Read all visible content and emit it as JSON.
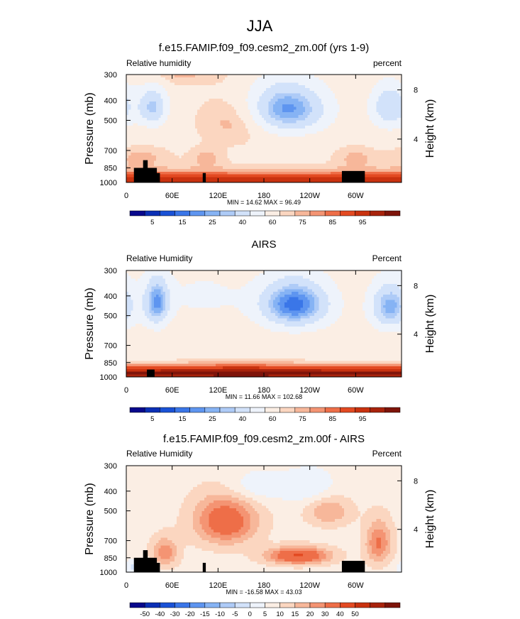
{
  "figure": {
    "title": "JJA"
  },
  "colormaps": {
    "rh": [
      "#08088c",
      "#0b2fb5",
      "#1a52d6",
      "#3a76e8",
      "#5e95f0",
      "#86b3f4",
      "#aecbf7",
      "#d2e2fa",
      "#eef3fb",
      "#fbeee4",
      "#fbd6c0",
      "#f7b79a",
      "#f49473",
      "#ee6e48",
      "#e34a22",
      "#c9320f",
      "#a8230c",
      "#7e140a"
    ],
    "diff": [
      "#08088c",
      "#0b2fb5",
      "#1a52d6",
      "#3a76e8",
      "#5e95f0",
      "#86b3f4",
      "#aecbf7",
      "#d2e2fa",
      "#eef3fb",
      "#fbeee4",
      "#fbd6c0",
      "#f7b79a",
      "#f49473",
      "#ee6e48",
      "#e34a22",
      "#c9320f",
      "#a8230c",
      "#7e140a"
    ]
  },
  "chart_data": [
    {
      "type": "heatmap",
      "id": "model",
      "title": "f.e15.FAMIP.f09_f09.cesm2_zm.00f (yrs 1-9)",
      "left_label": "Relative humidity",
      "right_label": "percent",
      "xlabel": "",
      "ylabel": "Pressure (mb)",
      "y2label": "Height (km)",
      "x_ticks": [
        "0",
        "60E",
        "120E",
        "180",
        "120W",
        "60W"
      ],
      "x_tick_values": [
        0,
        60,
        120,
        180,
        240,
        300
      ],
      "x_range": [
        0,
        360
      ],
      "y_ticks": [
        "300",
        "400",
        "500",
        "700",
        "850",
        "1000"
      ],
      "y_tick_values": [
        300,
        400,
        500,
        700,
        850,
        1000
      ],
      "y_range_mb": [
        1000,
        300
      ],
      "y2_ticks": [
        "4",
        "8"
      ],
      "y2_tick_values_km": [
        4,
        8
      ],
      "minmax_text": "MIN = 14.62  MAX = 96.49",
      "min": 14.62,
      "max": 96.49,
      "colorbar_labels": [
        "5",
        "15",
        "25",
        "40",
        "60",
        "75",
        "85",
        "95"
      ],
      "colorbar_label_slots": [
        1,
        3,
        5,
        7,
        9,
        11,
        13,
        15
      ],
      "cmap": "rh",
      "field": "model",
      "topography": [
        [
          10,
          40,
          850
        ],
        [
          22,
          28,
          780
        ],
        [
          38,
          44,
          900
        ],
        [
          100,
          104,
          900
        ],
        [
          282,
          312,
          880
        ]
      ]
    },
    {
      "type": "heatmap",
      "id": "airs",
      "title": "AIRS",
      "left_label": "Relative Humidity",
      "right_label": "Percent",
      "xlabel": "",
      "ylabel": "Pressure (mb)",
      "y2label": "Height (km)",
      "x_ticks": [
        "0",
        "60E",
        "120E",
        "180",
        "120W",
        "60W"
      ],
      "x_tick_values": [
        0,
        60,
        120,
        180,
        240,
        300
      ],
      "x_range": [
        0,
        360
      ],
      "y_ticks": [
        "300",
        "400",
        "500",
        "700",
        "850",
        "1000"
      ],
      "y_tick_values": [
        300,
        400,
        500,
        700,
        850,
        1000
      ],
      "y_range_mb": [
        1000,
        300
      ],
      "y2_ticks": [
        "4",
        "8"
      ],
      "y2_tick_values_km": [
        4,
        8
      ],
      "minmax_text": "MIN = 11.66  MAX = 102.68",
      "min": 11.66,
      "max": 102.68,
      "colorbar_labels": [
        "5",
        "15",
        "25",
        "40",
        "60",
        "75",
        "85",
        "95"
      ],
      "colorbar_label_slots": [
        1,
        3,
        5,
        7,
        9,
        11,
        13,
        15
      ],
      "cmap": "rh",
      "field": "airs",
      "topography": [
        [
          27,
          37,
          920
        ]
      ]
    },
    {
      "type": "heatmap",
      "id": "diff",
      "title": "f.e15.FAMIP.f09_f09.cesm2_zm.00f - AIRS",
      "left_label": "Relative Humidity",
      "right_label": "Percent",
      "xlabel": "",
      "ylabel": "Pressure (mb)",
      "y2label": "Height (km)",
      "x_ticks": [
        "0",
        "60E",
        "120E",
        "180",
        "120W",
        "60W"
      ],
      "x_tick_values": [
        0,
        60,
        120,
        180,
        240,
        300
      ],
      "x_range": [
        0,
        360
      ],
      "y_ticks": [
        "300",
        "400",
        "500",
        "700",
        "850",
        "1000"
      ],
      "y_tick_values": [
        300,
        400,
        500,
        700,
        850,
        1000
      ],
      "y_range_mb": [
        1000,
        300
      ],
      "y2_ticks": [
        "4",
        "8"
      ],
      "y2_tick_values_km": [
        4,
        8
      ],
      "minmax_text": "MIN = -16.58  MAX = 43.03",
      "min": -16.58,
      "max": 43.03,
      "colorbar_labels": [
        "-50",
        "-40",
        "-30",
        "-20",
        "-15",
        "-10",
        "-5",
        "0",
        "5",
        "10",
        "15",
        "20",
        "30",
        "40",
        "50"
      ],
      "colorbar_label_slots": [
        1,
        2,
        3,
        4,
        5,
        6,
        7,
        8,
        9,
        10,
        11,
        12,
        13,
        14,
        15
      ],
      "cmap": "diff",
      "field": "diff",
      "topography": [
        [
          10,
          40,
          850
        ],
        [
          22,
          28,
          780
        ],
        [
          38,
          44,
          900
        ],
        [
          100,
          104,
          900
        ],
        [
          282,
          312,
          880
        ]
      ]
    }
  ]
}
